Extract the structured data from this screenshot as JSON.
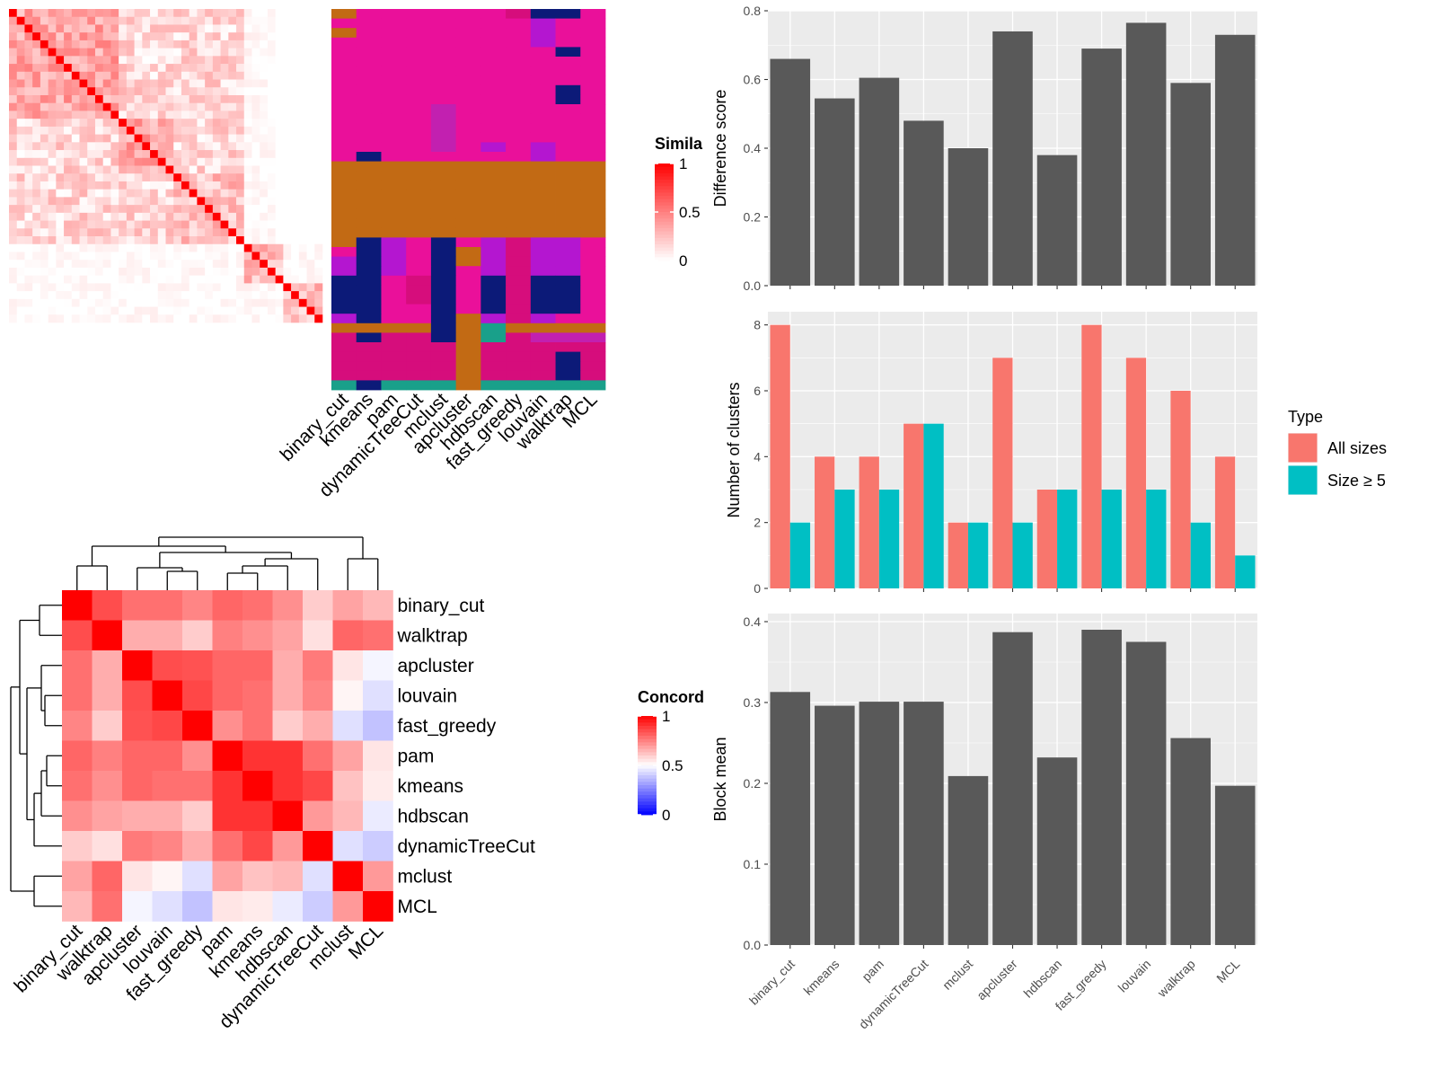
{
  "colors": {
    "panel_bg": "#ebebeb",
    "grid": "#ffffff",
    "bar_dark": "#595959",
    "all_sizes": "#f8766d",
    "size_ge5": "#00bfc4",
    "heat_high": "#ff0000",
    "heat_mid": "#ffffff",
    "heat_low": "#0000ff",
    "class_magenta": "#ea109a",
    "class_orange": "#c26a14",
    "class_navy": "#0c1a78",
    "class_purple": "#b416d0",
    "class_pink": "#d60d7c",
    "class_teal": "#19a08a",
    "class_violet": "#c220b0"
  },
  "methods_order": [
    "binary_cut",
    "kmeans",
    "pam",
    "dynamicTreeCut",
    "mclust",
    "apcluster",
    "hdbscan",
    "fast_greedy",
    "louvain",
    "walktrap",
    "MCL"
  ],
  "top_left": {
    "legend_title": "Simila",
    "legend_ticks": [
      "1",
      "0.5",
      "0"
    ],
    "x_labels": [
      "binary_cut",
      "kmeans",
      "pam",
      "dynamicTreeCut",
      "mclust",
      "apcluster",
      "hdbscan",
      "fast_greedy",
      "louvain",
      "walktrap",
      "MCL"
    ]
  },
  "bottom_left": {
    "legend_title": "Concord",
    "legend_ticks": [
      "1",
      "0.5",
      "0"
    ],
    "row_labels": [
      "binary_cut",
      "walktrap",
      "apcluster",
      "louvain",
      "fast_greedy",
      "pam",
      "kmeans",
      "hdbscan",
      "dynamicTreeCut",
      "mclust",
      "MCL"
    ],
    "col_labels": [
      "binary_cut",
      "walktrap",
      "apcluster",
      "louvain",
      "fast_greedy",
      "pam",
      "kmeans",
      "hdbscan",
      "dynamicTreeCut",
      "mclust",
      "MCL"
    ]
  },
  "chart_data": [
    {
      "type": "heatmap",
      "title": "",
      "legend_title": "Concord",
      "rows": [
        "binary_cut",
        "walktrap",
        "apcluster",
        "louvain",
        "fast_greedy",
        "pam",
        "kmeans",
        "hdbscan",
        "dynamicTreeCut",
        "mclust",
        "MCL"
      ],
      "cols": [
        "binary_cut",
        "walktrap",
        "apcluster",
        "louvain",
        "fast_greedy",
        "pam",
        "kmeans",
        "hdbscan",
        "dynamicTreeCut",
        "mclust",
        "MCL"
      ],
      "values": [
        [
          1.0,
          0.85,
          0.78,
          0.78,
          0.74,
          0.8,
          0.78,
          0.72,
          0.6,
          0.68,
          0.64
        ],
        [
          0.85,
          1.0,
          0.66,
          0.66,
          0.6,
          0.75,
          0.72,
          0.68,
          0.56,
          0.8,
          0.78
        ],
        [
          0.78,
          0.66,
          1.0,
          0.85,
          0.84,
          0.8,
          0.8,
          0.66,
          0.76,
          0.55,
          0.48
        ],
        [
          0.78,
          0.66,
          0.85,
          1.0,
          0.86,
          0.8,
          0.78,
          0.66,
          0.74,
          0.52,
          0.44
        ],
        [
          0.74,
          0.6,
          0.84,
          0.86,
          1.0,
          0.72,
          0.78,
          0.6,
          0.66,
          0.44,
          0.38
        ],
        [
          0.8,
          0.75,
          0.8,
          0.8,
          0.72,
          1.0,
          0.9,
          0.9,
          0.78,
          0.68,
          0.55
        ],
        [
          0.78,
          0.72,
          0.8,
          0.78,
          0.78,
          0.9,
          1.0,
          0.9,
          0.86,
          0.62,
          0.54
        ],
        [
          0.72,
          0.68,
          0.66,
          0.66,
          0.6,
          0.9,
          0.9,
          1.0,
          0.7,
          0.64,
          0.46
        ],
        [
          0.6,
          0.56,
          0.76,
          0.74,
          0.66,
          0.78,
          0.86,
          0.7,
          1.0,
          0.44,
          0.4
        ],
        [
          0.68,
          0.8,
          0.55,
          0.52,
          0.44,
          0.68,
          0.62,
          0.64,
          0.44,
          1.0,
          0.7
        ],
        [
          0.64,
          0.78,
          0.48,
          0.44,
          0.38,
          0.55,
          0.54,
          0.46,
          0.4,
          0.7,
          1.0
        ]
      ],
      "scale": [
        0,
        0.5,
        1
      ]
    },
    {
      "type": "bar",
      "title": "",
      "xlabel": "",
      "ylabel": "Difference score",
      "ylim": [
        0,
        0.8
      ],
      "yticks": [
        0.0,
        0.2,
        0.4,
        0.6,
        0.8
      ],
      "ytick_labels": [
        "0.0",
        "0.2",
        "0.4",
        "0.6",
        "0.8"
      ],
      "categories": [
        "binary_cut",
        "kmeans",
        "pam",
        "dynamicTreeCut",
        "mclust",
        "apcluster",
        "hdbscan",
        "fast_greedy",
        "louvain",
        "walktrap",
        "MCL"
      ],
      "values": [
        0.66,
        0.545,
        0.605,
        0.48,
        0.4,
        0.74,
        0.38,
        0.69,
        0.765,
        0.59,
        0.73
      ]
    },
    {
      "type": "bar",
      "title": "",
      "xlabel": "",
      "ylabel": "Number of clusters",
      "ylim": [
        0,
        8.4
      ],
      "yticks": [
        0,
        2,
        4,
        6,
        8
      ],
      "ytick_labels": [
        "0",
        "2",
        "4",
        "6",
        "8"
      ],
      "legend_title": "Type",
      "legend_position": "right",
      "categories": [
        "binary_cut",
        "kmeans",
        "pam",
        "dynamicTreeCut",
        "mclust",
        "apcluster",
        "hdbscan",
        "fast_greedy",
        "louvain",
        "walktrap",
        "MCL"
      ],
      "series": [
        {
          "name": "All sizes",
          "values": [
            8,
            4,
            4,
            5,
            2,
            7,
            3,
            8,
            7,
            6,
            4
          ]
        },
        {
          "name": "Size ≥ 5",
          "values": [
            2,
            3,
            3,
            5,
            2,
            2,
            3,
            3,
            3,
            2,
            1
          ]
        }
      ]
    },
    {
      "type": "bar",
      "title": "",
      "xlabel": "",
      "ylabel": "Block mean",
      "ylim": [
        0,
        0.41
      ],
      "yticks": [
        0.0,
        0.1,
        0.2,
        0.3,
        0.4
      ],
      "ytick_labels": [
        "0.0",
        "0.1",
        "0.2",
        "0.3",
        "0.4"
      ],
      "categories": [
        "binary_cut",
        "kmeans",
        "pam",
        "dynamicTreeCut",
        "mclust",
        "apcluster",
        "hdbscan",
        "fast_greedy",
        "louvain",
        "walktrap",
        "MCL"
      ],
      "values": [
        0.313,
        0.296,
        0.301,
        0.301,
        0.209,
        0.387,
        0.232,
        0.39,
        0.375,
        0.256,
        0.197
      ]
    }
  ]
}
